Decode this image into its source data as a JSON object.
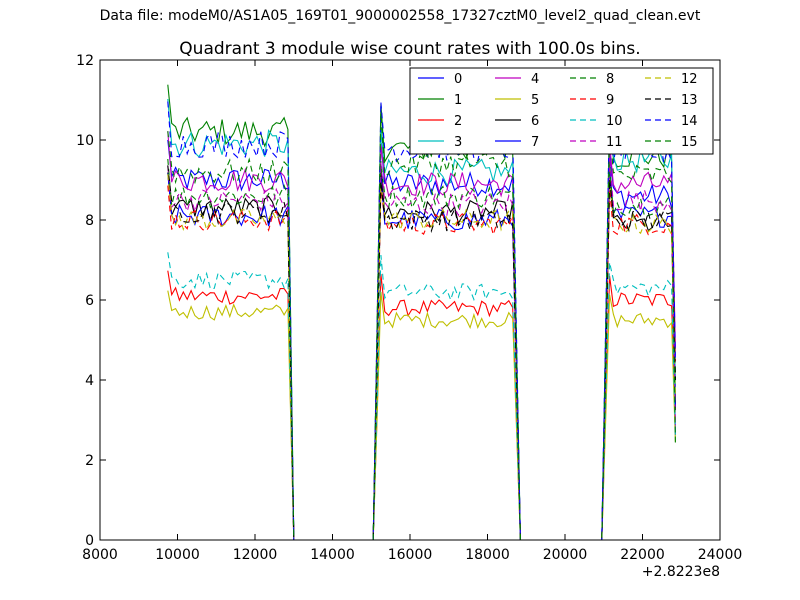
{
  "header": {
    "supertitle": "Data file: modeM0/AS1A05_169T01_9000002558_17327cztM0_level2_quad_clean.evt"
  },
  "chart_data": {
    "type": "line",
    "title": "Quadrant 3 module wise count rates with 100.0s bins.",
    "xlabel": "",
    "ylabel": "",
    "x_offset_label": "+2.8223e8",
    "xlim": [
      8000,
      24000
    ],
    "ylim": [
      0,
      12
    ],
    "x_ticks": [
      8000,
      10000,
      12000,
      14000,
      16000,
      18000,
      20000,
      22000,
      24000
    ],
    "y_ticks": [
      0,
      2,
      4,
      6,
      8,
      10,
      12
    ],
    "x_tick_labels": [
      "8000",
      "10000",
      "12000",
      "14000",
      "16000",
      "18000",
      "20000",
      "22000",
      "24000"
    ],
    "y_tick_labels": [
      "0",
      "2",
      "4",
      "6",
      "8",
      "10",
      "12"
    ],
    "grid": false,
    "legend_placement": "top-right",
    "segments": [
      {
        "x_start": 9750,
        "x_end": 12850,
        "drop_to": 13000
      },
      {
        "x_start": 15250,
        "x_end": 18650,
        "drop_to": 18850
      },
      {
        "x_start": 21150,
        "x_end": 22750,
        "drop_to": 22850
      }
    ],
    "gap_x": [
      13000,
      15000,
      18850,
      21000
    ],
    "series": [
      {
        "name": "0",
        "color": "#0000ff",
        "dash": false,
        "levels": [
          9.0,
          8.9,
          8.6
        ]
      },
      {
        "name": "1",
        "color": "#008000",
        "dash": false,
        "levels": [
          10.2,
          9.8,
          9.6
        ]
      },
      {
        "name": "2",
        "color": "#ff0000",
        "dash": false,
        "levels": [
          6.1,
          5.8,
          6.0
        ]
      },
      {
        "name": "3",
        "color": "#00bfbf",
        "dash": false,
        "levels": [
          9.9,
          9.2,
          9.5
        ]
      },
      {
        "name": "4",
        "color": "#bf00bf",
        "dash": false,
        "levels": [
          9.0,
          8.9,
          8.9
        ]
      },
      {
        "name": "5",
        "color": "#bfbf00",
        "dash": false,
        "levels": [
          5.7,
          5.5,
          5.5
        ]
      },
      {
        "name": "6",
        "color": "#000000",
        "dash": false,
        "levels": [
          8.3,
          8.2,
          7.9
        ]
      },
      {
        "name": "7",
        "color": "#0000ff",
        "dash": false,
        "levels": [
          8.1,
          8.0,
          8.1
        ]
      },
      {
        "name": "8",
        "color": "#008000",
        "dash": true,
        "levels": [
          8.6,
          8.6,
          8.4
        ]
      },
      {
        "name": "9",
        "color": "#ff0000",
        "dash": true,
        "levels": [
          8.0,
          7.9,
          7.9
        ]
      },
      {
        "name": "10",
        "color": "#00bfbf",
        "dash": true,
        "levels": [
          6.5,
          6.2,
          6.3
        ]
      },
      {
        "name": "11",
        "color": "#bf00bf",
        "dash": true,
        "levels": [
          8.5,
          8.4,
          8.5
        ]
      },
      {
        "name": "12",
        "color": "#bfbf00",
        "dash": true,
        "levels": [
          8.0,
          8.0,
          7.9
        ]
      },
      {
        "name": "13",
        "color": "#000000",
        "dash": true,
        "levels": [
          8.2,
          8.0,
          8.0
        ]
      },
      {
        "name": "14",
        "color": "#0000ff",
        "dash": true,
        "levels": [
          9.9,
          9.8,
          9.7
        ]
      },
      {
        "name": "15",
        "color": "#008000",
        "dash": true,
        "levels": [
          9.2,
          9.4,
          9.1
        ]
      }
    ]
  }
}
